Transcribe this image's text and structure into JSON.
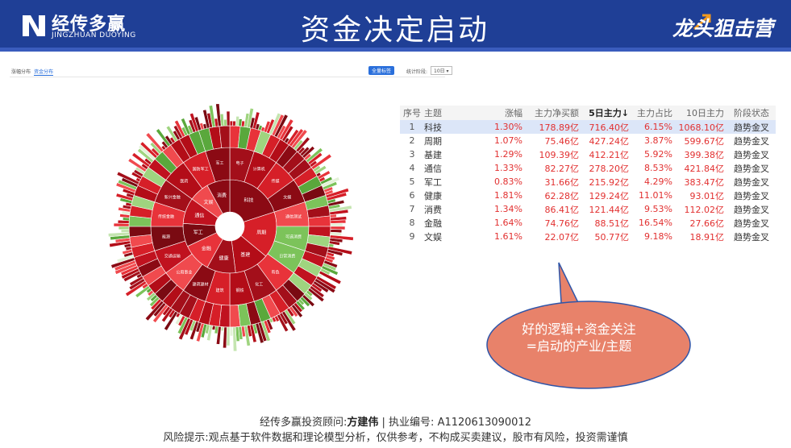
{
  "header": {
    "logo_cn": "经传多赢",
    "logo_en": "JINGZHUAN DUOYING",
    "title": "资金决定启动",
    "slogan": "龙头狙击营",
    "bg_color": "#1f3f96"
  },
  "toolbar": {
    "tabs": [
      "涨幅分布",
      "资金分布"
    ],
    "active_tab": 1,
    "button": "全量标签",
    "period_label": "统计阶段:",
    "period_value": "10日"
  },
  "sunburst": {
    "inner_labels": [
      "科技",
      "周期",
      "基建",
      "健康",
      "金融",
      "军工",
      "通信",
      "文娱",
      "消费"
    ],
    "middle_labels": [
      "电子",
      "计算机",
      "传媒",
      "文娱",
      "通信测试",
      "可选消费",
      "日常消费",
      "有色",
      "化工",
      "钢铁",
      "建筑",
      "建筑建材",
      "公用事业",
      "交通运输",
      "能源",
      "传统金融",
      "新兴金融",
      "医药",
      "国防军工",
      "军工"
    ]
  },
  "table": {
    "headers": [
      "序号",
      "主题",
      "涨幅",
      "主力净买额",
      "5日主力↓",
      "主力占比",
      "10日主力",
      "阶段状态"
    ],
    "rows": [
      {
        "idx": "1",
        "name": "科技",
        "chg": "1.30%",
        "net": "178.89亿",
        "d5": "716.40亿",
        "ratio": "6.15%",
        "d10": "1068.10亿",
        "state": "趋势金叉"
      },
      {
        "idx": "2",
        "name": "周期",
        "chg": "1.07%",
        "net": "75.46亿",
        "d5": "427.24亿",
        "ratio": "3.87%",
        "d10": "599.67亿",
        "state": "趋势金叉"
      },
      {
        "idx": "3",
        "name": "基建",
        "chg": "1.29%",
        "net": "109.39亿",
        "d5": "412.21亿",
        "ratio": "5.92%",
        "d10": "399.38亿",
        "state": "趋势金叉"
      },
      {
        "idx": "4",
        "name": "通信",
        "chg": "1.33%",
        "net": "82.27亿",
        "d5": "278.20亿",
        "ratio": "8.53%",
        "d10": "421.84亿",
        "state": "趋势金叉"
      },
      {
        "idx": "5",
        "name": "军工",
        "chg": "0.83%",
        "net": "31.66亿",
        "d5": "215.92亿",
        "ratio": "4.29%",
        "d10": "383.47亿",
        "state": "趋势金叉"
      },
      {
        "idx": "6",
        "name": "健康",
        "chg": "1.81%",
        "net": "62.28亿",
        "d5": "129.24亿",
        "ratio": "11.01%",
        "d10": "93.01亿",
        "state": "趋势金叉"
      },
      {
        "idx": "7",
        "name": "消费",
        "chg": "1.34%",
        "net": "86.41亿",
        "d5": "121.44亿",
        "ratio": "9.53%",
        "d10": "112.02亿",
        "state": "趋势金叉"
      },
      {
        "idx": "8",
        "name": "金融",
        "chg": "1.64%",
        "net": "74.76亿",
        "d5": "88.51亿",
        "ratio": "16.54%",
        "d10": "27.66亿",
        "state": "趋势金叉"
      },
      {
        "idx": "9",
        "name": "文娱",
        "chg": "1.61%",
        "net": "22.07亿",
        "d5": "50.77亿",
        "ratio": "9.18%",
        "d10": "18.91亿",
        "state": "趋势金叉"
      }
    ],
    "selected_row": 0,
    "value_color": "#e23030"
  },
  "callout": {
    "line1": "好的逻辑+资金关注",
    "line2": "=启动的产业/主题",
    "color": "#e8826a"
  },
  "footer": {
    "advisor_prefix": "经传多赢投资顾问:",
    "advisor_name": "方建伟",
    "license": " | 执业编号: A1120613090012",
    "risk": "风险提示:观点基于软件数据和理论模型分析，仅供参考，不构成买卖建议，股市有风险，投资需谨慎"
  }
}
